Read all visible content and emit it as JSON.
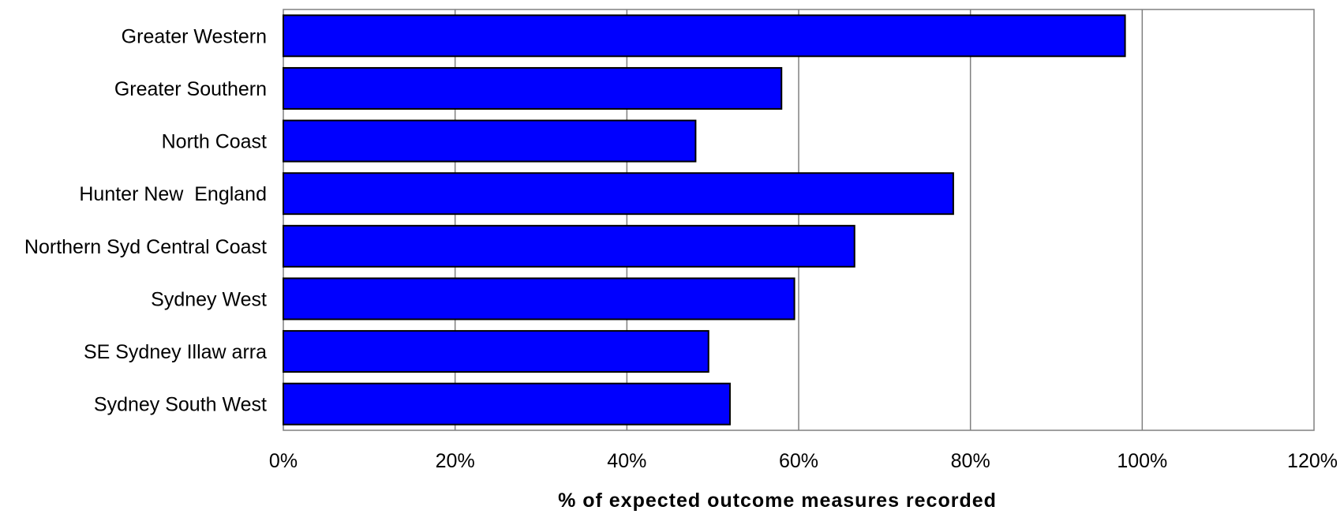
{
  "chart_data": {
    "type": "bar",
    "orientation": "horizontal",
    "categories": [
      "Greater Western",
      "Greater Southern",
      "North Coast",
      "Hunter New  England",
      "Northern Syd Central Coast",
      "Sydney West",
      "SE Sydney Illaw arra",
      "Sydney South West"
    ],
    "values": [
      98,
      58,
      48,
      78,
      66.5,
      59.5,
      49.5,
      52
    ],
    "value_unit": "%",
    "title": "",
    "xlabel": "% of expected outcome measures recorded",
    "ylabel": "",
    "xlim": [
      0,
      120
    ],
    "x_ticks": [
      0,
      20,
      40,
      60,
      80,
      100,
      120
    ],
    "x_tick_labels": [
      "0%",
      "20%",
      "40%",
      "60%",
      "80%",
      "100%",
      "120%"
    ],
    "grid": "vertical",
    "legend": "none",
    "bar_color": "#0000ff",
    "bar_edge_color": "#000000",
    "gridline_color": "#808080"
  }
}
